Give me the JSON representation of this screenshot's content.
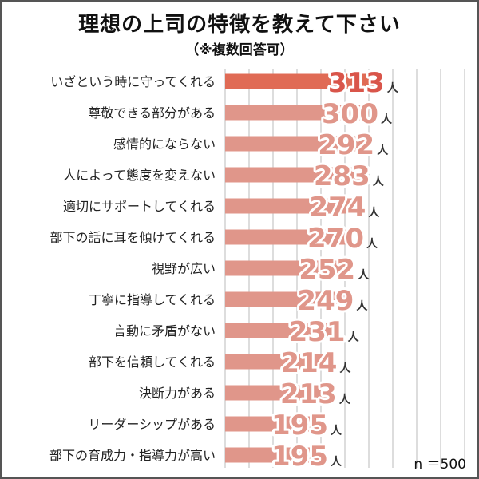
{
  "chart_data": {
    "type": "bar",
    "orientation": "horizontal",
    "title": "理想の上司の特徴を教えて下さい",
    "subtitle": "（※複数回答可）",
    "categories": [
      "いざという時に守ってくれる",
      "尊敬できる部分がある",
      "感情的にならない",
      "人によって態度を変えない",
      "適切にサポートしてくれる",
      "部下の話に耳を傾けてくれる",
      "視野が広い",
      "丁寧に指導してくれる",
      "言動に矛盾がない",
      "部下を信頼してくれる",
      "決断力がある",
      "リーダーシップがある",
      "部下の育成力・指導力が高い"
    ],
    "values": [
      313,
      300,
      292,
      283,
      274,
      270,
      252,
      249,
      231,
      214,
      213,
      195,
      195
    ],
    "unit": "人",
    "xlim": [
      0,
      500
    ],
    "grid": true,
    "note": "n ＝500",
    "colors": {
      "top_bar": "#e06b55",
      "bar": "#e0968a",
      "top_value": "#d9554a",
      "value": "#e0968a",
      "grid": "#bbbbbb"
    }
  }
}
